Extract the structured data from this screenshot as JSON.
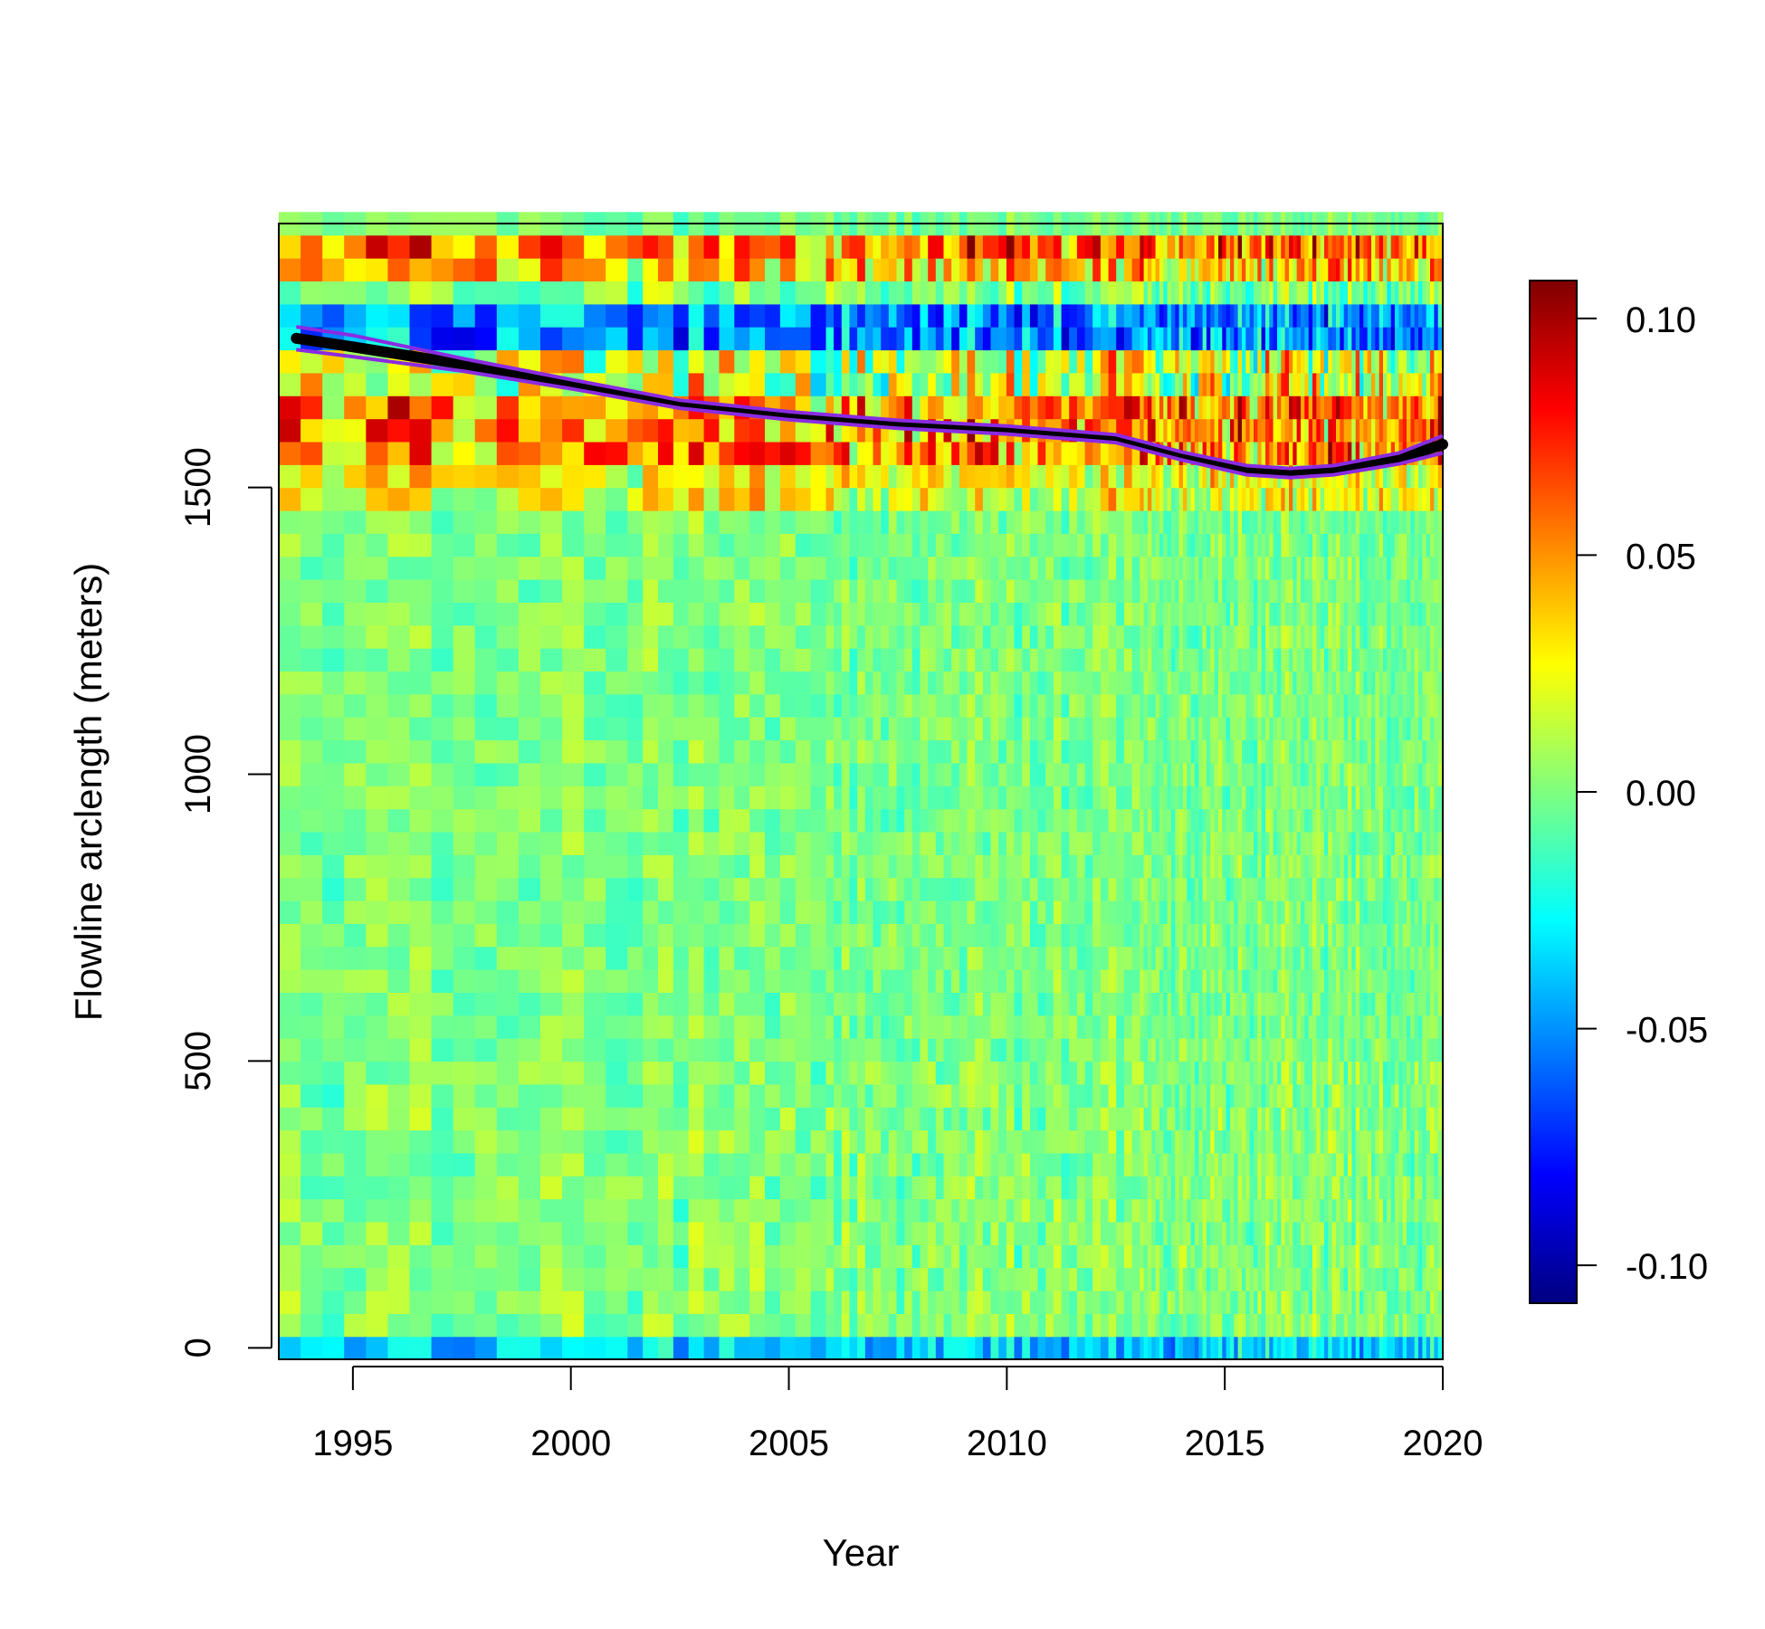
{
  "chart_data": {
    "type": "heatmap",
    "xlabel": "Year",
    "ylabel": "Flowline arclength (meters)",
    "xlim": [
      1993.3,
      2020
    ],
    "ylim": [
      -20,
      1960
    ],
    "x_ticks": [
      1995,
      2000,
      2005,
      2010,
      2015,
      2020
    ],
    "x_tick_labels": [
      "1995",
      "2000",
      "2005",
      "2010",
      "2015",
      "2020"
    ],
    "y_ticks": [
      0,
      500,
      1000,
      1500
    ],
    "y_tick_labels": [
      "0",
      "500",
      "1000",
      "1500"
    ],
    "colorbar": {
      "range": [
        -0.108,
        0.108
      ],
      "ticks": [
        -0.1,
        -0.05,
        0.0,
        0.05,
        0.1
      ],
      "tick_labels": [
        "-0.10",
        "-0.05",
        "0.00",
        "0.05",
        "0.10"
      ],
      "colors": [
        "#00007F",
        "#0000FF",
        "#007FFF",
        "#00FFFF",
        "#7FFF7F",
        "#FFFF00",
        "#FF7F00",
        "#FF0000",
        "#7F0000"
      ]
    },
    "grid": false,
    "terminus_line": {
      "name": "",
      "color": "#000000",
      "points": [
        [
          1993.7,
          1760
        ],
        [
          1995,
          1745
        ],
        [
          1997.5,
          1715
        ],
        [
          2000,
          1680
        ],
        [
          2002.5,
          1645
        ],
        [
          2005,
          1625
        ],
        [
          2007.5,
          1610
        ],
        [
          2010,
          1600
        ],
        [
          2012.5,
          1585
        ],
        [
          2014,
          1555
        ],
        [
          2015.5,
          1530
        ],
        [
          2016.5,
          1525
        ],
        [
          2017.5,
          1530
        ],
        [
          2019,
          1550
        ],
        [
          2020,
          1575
        ]
      ]
    },
    "terminus_band_upper": {
      "color": "#8A2BE2",
      "points": [
        [
          1993.7,
          1780
        ],
        [
          1995,
          1765
        ],
        [
          1997.5,
          1725
        ],
        [
          2000,
          1688
        ],
        [
          2002.5,
          1652
        ],
        [
          2005,
          1632
        ],
        [
          2007.5,
          1617
        ],
        [
          2010,
          1607
        ],
        [
          2012.5,
          1592
        ],
        [
          2014,
          1562
        ],
        [
          2015.5,
          1538
        ],
        [
          2016.5,
          1533
        ],
        [
          2017.5,
          1538
        ],
        [
          2019,
          1560
        ],
        [
          2020,
          1590
        ]
      ]
    },
    "terminus_band_lower": {
      "color": "#8A2BE2",
      "points": [
        [
          1993.7,
          1740
        ],
        [
          1995,
          1728
        ],
        [
          1997.5,
          1703
        ],
        [
          2000,
          1672
        ],
        [
          2002.5,
          1638
        ],
        [
          2005,
          1618
        ],
        [
          2007.5,
          1603
        ],
        [
          2010,
          1593
        ],
        [
          2012.5,
          1578
        ],
        [
          2014,
          1548
        ],
        [
          2015.5,
          1522
        ],
        [
          2016.5,
          1517
        ],
        [
          2017.5,
          1522
        ],
        [
          2019,
          1541
        ],
        [
          2020,
          1560
        ]
      ]
    },
    "heatmap_zones": [
      {
        "y": [
          1920,
          1960
        ],
        "mean": 0.06,
        "spread": 0.04
      },
      {
        "y": [
          1860,
          1920
        ],
        "mean": 0.04,
        "spread": 0.035
      },
      {
        "y": [
          1830,
          1860
        ],
        "mean": 0.0,
        "spread": 0.02
      },
      {
        "y": [
          1750,
          1830
        ],
        "mean": -0.05,
        "spread": 0.03
      },
      {
        "y": [
          1680,
          1750
        ],
        "mean": 0.02,
        "spread": 0.04
      },
      {
        "y": [
          1560,
          1680
        ],
        "mean": 0.055,
        "spread": 0.04
      },
      {
        "y": [
          1470,
          1560
        ],
        "mean": 0.025,
        "spread": 0.025
      },
      {
        "y": [
          1380,
          1470
        ],
        "mean": 0.0,
        "spread": 0.012
      },
      {
        "y": [
          500,
          1380
        ],
        "mean": 0.0,
        "spread": 0.012
      },
      {
        "y": [
          20,
          500
        ],
        "mean": 0.002,
        "spread": 0.014
      },
      {
        "y": [
          -20,
          20
        ],
        "mean": -0.035,
        "spread": 0.02
      }
    ]
  }
}
